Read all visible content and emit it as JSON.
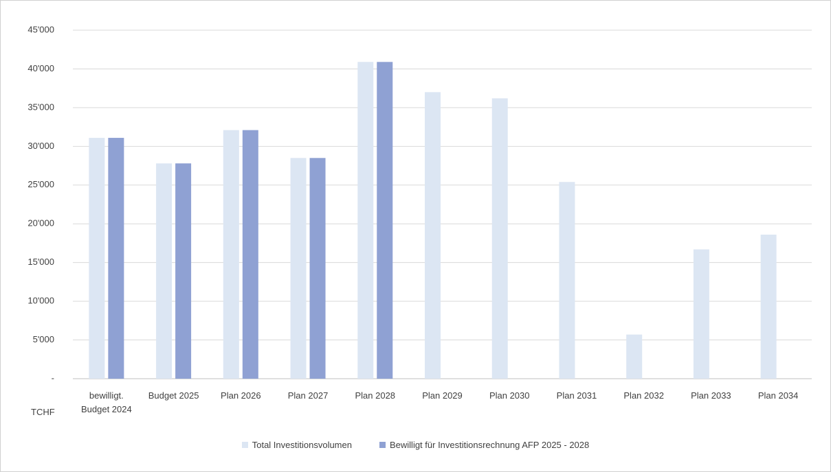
{
  "chart_data": {
    "type": "bar",
    "y_label": "TCHF",
    "categories": [
      "bewilligt. Budget 2024",
      "Budget 2025",
      "Plan 2026",
      "Plan 2027",
      "Plan 2028",
      "Plan 2029",
      "Plan 2030",
      "Plan 2031",
      "Plan 2032",
      "Plan 2033",
      "Plan 2034"
    ],
    "series": [
      {
        "name": "Total Investitionsvolumen",
        "color": "#dce6f3",
        "values": [
          31100,
          27800,
          32100,
          28500,
          40900,
          37000,
          36200,
          25400,
          5700,
          16700,
          18600
        ]
      },
      {
        "name": "Bewilligt für Investitionsrechnung AFP 2025 - 2028",
        "color": "#8fa1d3",
        "values": [
          31100,
          27800,
          32100,
          28500,
          40900,
          null,
          null,
          null,
          null,
          null,
          null
        ]
      }
    ],
    "ylim": [
      0,
      45000
    ],
    "yticks": [
      {
        "value": 0,
        "label": "-"
      },
      {
        "value": 5000,
        "label": "5'000"
      },
      {
        "value": 10000,
        "label": "10'000"
      },
      {
        "value": 15000,
        "label": "15'000"
      },
      {
        "value": 20000,
        "label": "20'000"
      },
      {
        "value": 25000,
        "label": "25'000"
      },
      {
        "value": 30000,
        "label": "30'000"
      },
      {
        "value": 35000,
        "label": "35'000"
      },
      {
        "value": 40000,
        "label": "40'000"
      },
      {
        "value": 45000,
        "label": "45'000"
      }
    ],
    "grid": true,
    "legend": "bottom"
  }
}
